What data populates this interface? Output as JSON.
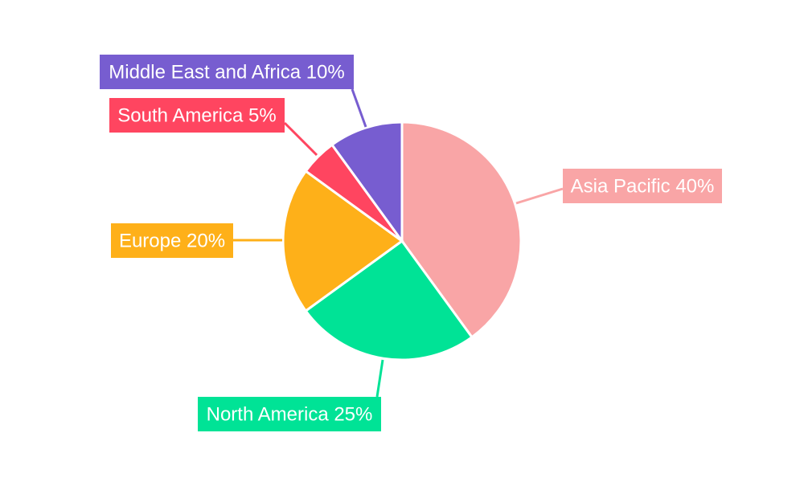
{
  "chart_data": {
    "type": "pie",
    "title": "",
    "start_angle_deg": 0,
    "direction": "clockwise",
    "slices": [
      {
        "label": "Asia Pacific",
        "value": 40,
        "display": "Asia Pacific 40%",
        "color": "#F9A5A6"
      },
      {
        "label": "North America",
        "value": 25,
        "display": "North America 25%",
        "color": "#00E396"
      },
      {
        "label": "Europe",
        "value": 20,
        "display": "Europe 20%",
        "color": "#FEB019"
      },
      {
        "label": "South America",
        "value": 5,
        "display": "South America 5%",
        "color": "#FF4560"
      },
      {
        "label": "Middle East and Africa",
        "value": 10,
        "display": "Middle East and Africa 10%",
        "color": "#775DD0"
      }
    ]
  }
}
